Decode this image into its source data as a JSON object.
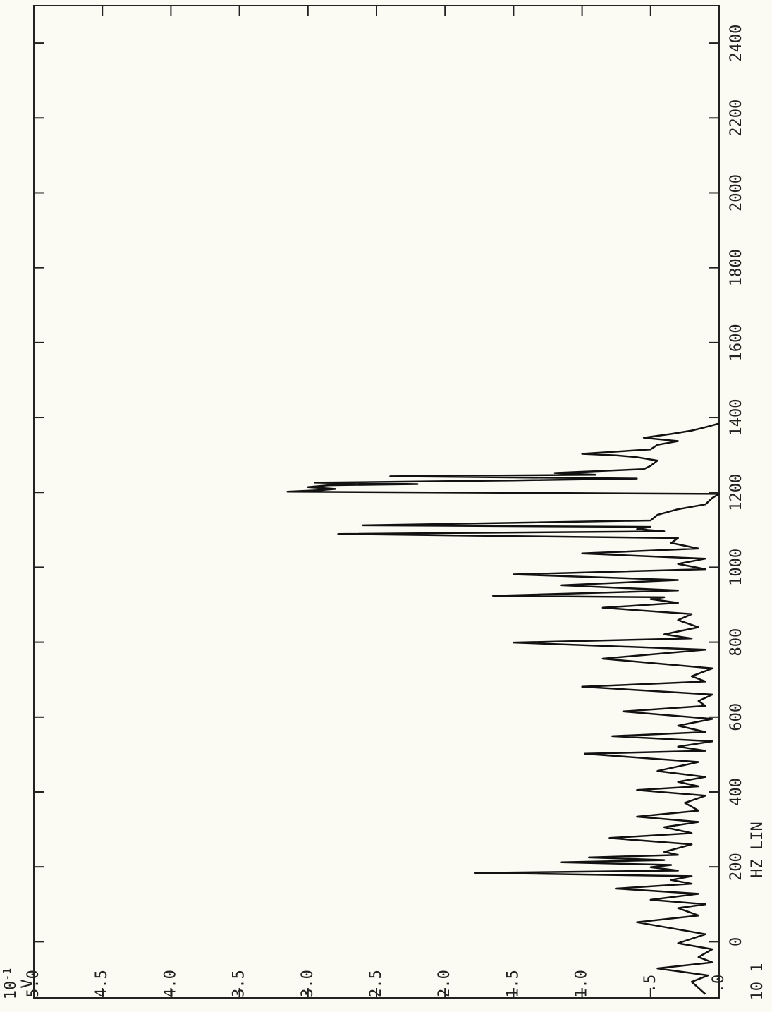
{
  "chart_data": {
    "type": "line",
    "value_scale": {
      "base": "10",
      "exp": "-1"
    },
    "value_unit": "V",
    "x_scale_label": "10 1",
    "x_label": "HZ LIN",
    "xlim": [
      -150,
      2500
    ],
    "xticks": [
      0,
      200,
      400,
      600,
      800,
      1000,
      1200,
      1400,
      1600,
      1800,
      2000,
      2200,
      2400
    ],
    "ylim": [
      0,
      5
    ],
    "yticks": [
      {
        "value": 0,
        "label": ".0"
      },
      {
        "value": 0.5,
        "label": ".5"
      },
      {
        "value": 1,
        "label": "1.0"
      },
      {
        "value": 1.5,
        "label": "1.5"
      },
      {
        "value": 2,
        "label": "2.0"
      },
      {
        "value": 2.5,
        "label": "2.5"
      },
      {
        "value": 3,
        "label": "3.0"
      },
      {
        "value": 3.5,
        "label": "3.5"
      },
      {
        "value": 4,
        "label": "4.0"
      },
      {
        "value": 4.5,
        "label": "4.5"
      },
      {
        "value": 5,
        "label": "5.0"
      }
    ],
    "series": [
      {
        "color": "#111111",
        "x": [
          -140,
          -107,
          -90,
          -71,
          -55,
          -41,
          -20,
          -4,
          20,
          52,
          70,
          90,
          100,
          112,
          128,
          142,
          155,
          165,
          175,
          184,
          190,
          199,
          205,
          212,
          218,
          225,
          232,
          240,
          260,
          277,
          290,
          306,
          320,
          334,
          350,
          371,
          390,
          405,
          415,
          427,
          440,
          456,
          480,
          502,
          510,
          521,
          535,
          549,
          560,
          577,
          595,
          615,
          630,
          643,
          660,
          681,
          695,
          709,
          730,
          756,
          780,
          799,
          810,
          821,
          840,
          859,
          875,
          892,
          905,
          915,
          920,
          924,
          938,
          952,
          966,
          981,
          995,
          1009,
          1023,
          1037,
          1050,
          1065,
          1078,
          1089,
          1096,
          1102,
          1108,
          1112,
          1125,
          1140,
          1155,
          1168,
          1185,
          1196,
          1202,
          1206,
          1209,
          1214,
          1219,
          1222,
          1226,
          1232,
          1237,
          1243,
          1247,
          1252,
          1262,
          1271,
          1285,
          1294,
          1299,
          1303,
          1315,
          1327,
          1337,
          1346,
          1356,
          1365,
          1374,
          1384
        ],
        "values": [
          0.1,
          0.2,
          0.08,
          0.45,
          0.05,
          0.15,
          0.05,
          0.3,
          0.1,
          0.6,
          0.15,
          0.3,
          0.1,
          0.5,
          0.15,
          0.75,
          0.2,
          0.35,
          0.2,
          1.78,
          0.3,
          0.5,
          0.35,
          1.15,
          0.4,
          0.95,
          0.3,
          0.4,
          0.2,
          0.8,
          0.2,
          0.4,
          0.15,
          0.6,
          0.15,
          0.25,
          0.1,
          0.6,
          0.15,
          0.3,
          0.1,
          0.45,
          0.15,
          0.98,
          0.1,
          0.3,
          0.05,
          0.78,
          0.1,
          0.3,
          0.05,
          0.7,
          0.1,
          0.15,
          0.05,
          1.0,
          0.1,
          0.2,
          0.05,
          0.85,
          0.1,
          1.5,
          0.2,
          0.4,
          0.15,
          0.3,
          0.2,
          0.85,
          0.3,
          0.5,
          0.4,
          1.65,
          0.3,
          1.15,
          0.3,
          1.5,
          0.1,
          0.3,
          0.1,
          1.0,
          0.15,
          0.35,
          0.3,
          2.78,
          0.4,
          0.6,
          0.5,
          2.6,
          0.5,
          0.45,
          0.3,
          0.1,
          0.05,
          0.0,
          3.15,
          2.9,
          2.8,
          3.0,
          2.85,
          2.2,
          2.95,
          1.5,
          0.6,
          2.4,
          0.9,
          1.2,
          0.55,
          0.5,
          0.45,
          0.6,
          0.75,
          1.0,
          0.5,
          0.45,
          0.3,
          0.55,
          0.35,
          0.2,
          0.1,
          0.0
        ]
      }
    ]
  }
}
